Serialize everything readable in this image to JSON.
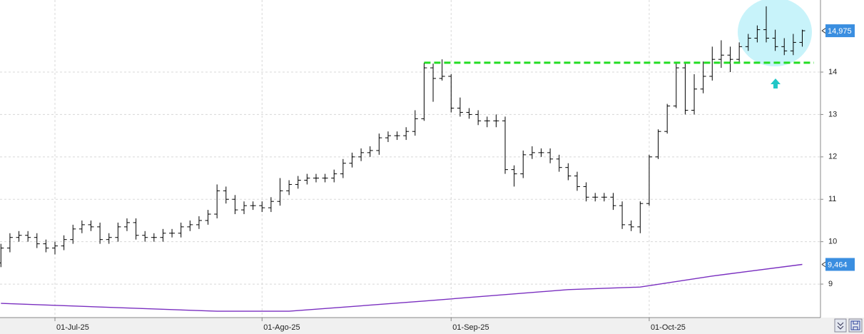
{
  "chart_data": {
    "type": "ohlc",
    "categories": [
      null,
      null,
      null,
      null,
      null,
      null,
      "01-Jul-25",
      null,
      null,
      null,
      null,
      null,
      null,
      null,
      null,
      null,
      null,
      null,
      null,
      null,
      null,
      null,
      null,
      null,
      null,
      null,
      null,
      null,
      null,
      "01-Ago-25",
      null,
      null,
      null,
      null,
      null,
      null,
      null,
      null,
      null,
      null,
      null,
      null,
      null,
      null,
      null,
      null,
      null,
      null,
      null,
      null,
      "01-Sep-25",
      null,
      null,
      null,
      null,
      null,
      null,
      null,
      null,
      null,
      null,
      null,
      null,
      null,
      null,
      null,
      null,
      null,
      null,
      null,
      null,
      null,
      "01-Oct-25",
      null,
      null,
      null,
      null,
      null,
      null,
      null,
      null,
      null,
      null,
      null,
      null,
      null,
      null,
      null,
      null,
      null
    ],
    "open": [
      9.5,
      9.85,
      10.1,
      10.15,
      10.1,
      9.95,
      9.85,
      9.9,
      10.05,
      10.3,
      10.4,
      10.35,
      10.05,
      10.1,
      10.35,
      10.45,
      10.15,
      10.1,
      10.1,
      10.2,
      10.2,
      10.35,
      10.4,
      10.5,
      10.65,
      11.2,
      11.0,
      10.75,
      10.85,
      10.85,
      10.8,
      10.95,
      11.2,
      11.35,
      11.45,
      11.5,
      11.5,
      11.5,
      11.6,
      11.85,
      12.0,
      12.1,
      12.15,
      12.45,
      12.5,
      12.5,
      12.6,
      12.9,
      14.1,
      13.85,
      13.9,
      13.15,
      13.05,
      13.0,
      12.85,
      12.85,
      12.85,
      11.7,
      11.6,
      12.05,
      12.1,
      12.1,
      11.95,
      11.75,
      11.55,
      11.3,
      11.05,
      11.05,
      11.05,
      10.85,
      10.4,
      10.35,
      10.9,
      12.0,
      12.6,
      13.2,
      14.1,
      13.1,
      13.6,
      13.9,
      14.3,
      14.4,
      14.3,
      14.6,
      14.8,
      15.0,
      14.8,
      14.6,
      14.5,
      14.7
    ],
    "high": [
      9.95,
      10.2,
      10.25,
      10.25,
      10.2,
      10.05,
      10.0,
      10.15,
      10.4,
      10.5,
      10.5,
      10.45,
      10.2,
      10.45,
      10.55,
      10.55,
      10.25,
      10.2,
      10.3,
      10.3,
      10.45,
      10.5,
      10.6,
      10.75,
      11.35,
      11.3,
      11.1,
      10.95,
      10.95,
      10.95,
      11.05,
      11.5,
      11.45,
      11.55,
      11.6,
      11.6,
      11.6,
      11.7,
      11.95,
      12.1,
      12.2,
      12.25,
      12.55,
      12.6,
      12.6,
      12.7,
      13.1,
      14.22,
      14.2,
      14.3,
      13.95,
      13.4,
      13.15,
      13.1,
      12.95,
      13.0,
      12.95,
      11.8,
      12.15,
      12.25,
      12.2,
      12.2,
      12.05,
      11.85,
      11.65,
      11.4,
      11.15,
      11.15,
      11.15,
      10.95,
      10.5,
      10.95,
      12.05,
      12.65,
      13.25,
      14.2,
      14.2,
      13.95,
      14.25,
      14.6,
      14.75,
      14.6,
      14.7,
      14.9,
      15.1,
      15.55,
      15.0,
      14.8,
      14.9,
      15.0
    ],
    "low": [
      9.4,
      9.75,
      10.0,
      10.0,
      9.85,
      9.75,
      9.7,
      9.8,
      9.95,
      10.2,
      10.25,
      9.95,
      9.95,
      10.0,
      10.25,
      10.05,
      10.0,
      10.0,
      10.0,
      10.1,
      10.1,
      10.25,
      10.3,
      10.4,
      10.55,
      10.9,
      10.65,
      10.65,
      10.75,
      10.7,
      10.7,
      10.85,
      11.1,
      11.25,
      11.35,
      11.4,
      11.4,
      11.4,
      11.5,
      11.75,
      11.9,
      12.0,
      12.05,
      12.35,
      12.4,
      12.4,
      12.5,
      12.85,
      13.3,
      13.8,
      13.05,
      12.95,
      12.9,
      12.75,
      12.7,
      12.7,
      11.6,
      11.3,
      11.5,
      11.95,
      12.0,
      11.85,
      11.65,
      11.45,
      11.2,
      10.95,
      10.95,
      10.95,
      10.75,
      10.3,
      10.25,
      10.2,
      10.85,
      11.95,
      12.55,
      13.15,
      13.0,
      13.0,
      13.5,
      13.8,
      14.1,
      14.0,
      14.2,
      14.5,
      14.7,
      14.7,
      14.5,
      14.4,
      14.4,
      14.6
    ],
    "close": [
      9.85,
      10.1,
      10.15,
      10.1,
      9.95,
      9.85,
      9.9,
      10.05,
      10.3,
      10.4,
      10.35,
      10.05,
      10.1,
      10.35,
      10.45,
      10.15,
      10.1,
      10.1,
      10.2,
      10.2,
      10.35,
      10.4,
      10.5,
      10.65,
      11.2,
      11.0,
      10.75,
      10.85,
      10.85,
      10.8,
      10.95,
      11.2,
      11.35,
      11.45,
      11.5,
      11.5,
      11.5,
      11.6,
      11.85,
      12.0,
      12.1,
      12.15,
      12.45,
      12.5,
      12.5,
      12.6,
      12.9,
      14.1,
      13.85,
      13.9,
      13.15,
      13.05,
      13.0,
      12.85,
      12.85,
      12.85,
      11.7,
      11.6,
      12.05,
      12.1,
      12.1,
      11.95,
      11.75,
      11.55,
      11.3,
      11.05,
      11.05,
      11.05,
      10.85,
      10.4,
      10.35,
      10.9,
      12.0,
      12.6,
      13.2,
      14.1,
      13.1,
      13.6,
      13.9,
      14.3,
      14.4,
      14.3,
      14.6,
      14.8,
      15.0,
      14.8,
      14.6,
      14.5,
      14.7,
      14.975
    ],
    "color": "#000000",
    "moving_average": {
      "x": [
        0,
        24,
        32,
        47,
        63,
        71,
        79,
        89
      ],
      "values": [
        8.545,
        8.36,
        8.36,
        8.6,
        8.87,
        8.93,
        9.19,
        9.464
      ],
      "color": "#7a2fc0"
    },
    "resistance": {
      "value": 14.22,
      "x": [
        47,
        90.3
      ],
      "color": "#22dd22"
    },
    "price_labels": [
      {
        "value": 14.975,
        "label": "14,975"
      },
      {
        "value": 9.464,
        "label": "9,464"
      }
    ],
    "ylim": [
      8.21,
      15.7
    ],
    "yticks": [
      9,
      10,
      11,
      12,
      13,
      14
    ],
    "grid": true
  }
}
